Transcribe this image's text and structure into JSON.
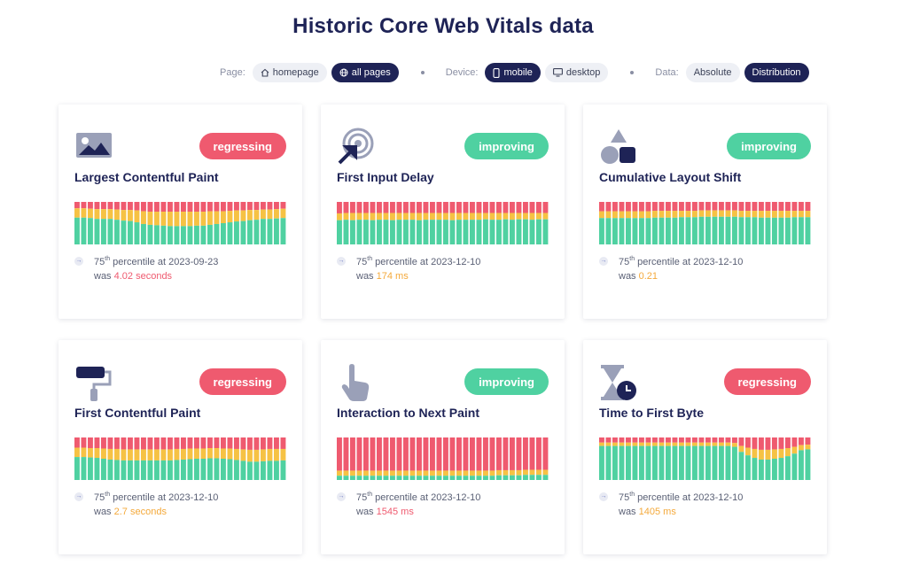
{
  "title": "Historic Core Web Vitals data",
  "filters": {
    "page_label": "Page:",
    "page_options": [
      "homepage",
      "all pages"
    ],
    "page_selected": "all pages",
    "device_label": "Device:",
    "device_options": [
      "mobile",
      "desktop"
    ],
    "device_selected": "mobile",
    "data_label": "Data:",
    "data_options": [
      "Absolute",
      "Distribution"
    ],
    "data_selected": "Distribution"
  },
  "colors": {
    "good": "#4fd1a1",
    "needs_improvement": "#f6c244",
    "poor": "#ef5a6f",
    "navy": "#1e2356"
  },
  "cards": [
    {
      "icon": "image-icon",
      "title": "Largest Contentful Paint",
      "status": "regressing",
      "percentile_sup": "th",
      "percentile_prefix": "75",
      "percentile_text": " percentile at 2023-09-23",
      "was_text": "was ",
      "value": "4.02 seconds",
      "value_color": "red",
      "chart_data": {
        "type": "bar",
        "stacked": true,
        "normalized": true,
        "bar_count": 32,
        "good": [
          0.63,
          0.63,
          0.62,
          0.6,
          0.6,
          0.6,
          0.58,
          0.56,
          0.55,
          0.52,
          0.48,
          0.46,
          0.45,
          0.44,
          0.43,
          0.43,
          0.43,
          0.43,
          0.44,
          0.44,
          0.46,
          0.48,
          0.5,
          0.52,
          0.54,
          0.55,
          0.57,
          0.58,
          0.6,
          0.6,
          0.61,
          0.62
        ],
        "needs_improvement": [
          0.22,
          0.22,
          0.22,
          0.23,
          0.23,
          0.23,
          0.24,
          0.25,
          0.26,
          0.28,
          0.3,
          0.31,
          0.32,
          0.33,
          0.34,
          0.34,
          0.34,
          0.34,
          0.33,
          0.33,
          0.32,
          0.3,
          0.28,
          0.27,
          0.26,
          0.25,
          0.24,
          0.23,
          0.22,
          0.22,
          0.22,
          0.22
        ]
      }
    },
    {
      "icon": "target-click-icon",
      "title": "First Input Delay",
      "status": "improving",
      "percentile_sup": "th",
      "percentile_prefix": "75",
      "percentile_text": " percentile at 2023-12-10",
      "was_text": "was ",
      "value": "174 ms",
      "value_color": "orange",
      "chart_data": {
        "type": "bar",
        "stacked": true,
        "normalized": true,
        "bar_count": 32,
        "good": [
          0.57,
          0.58,
          0.57,
          0.58,
          0.58,
          0.57,
          0.58,
          0.58,
          0.57,
          0.58,
          0.58,
          0.58,
          0.57,
          0.58,
          0.58,
          0.58,
          0.58,
          0.57,
          0.58,
          0.58,
          0.58,
          0.58,
          0.59,
          0.58,
          0.58,
          0.59,
          0.58,
          0.59,
          0.59,
          0.58,
          0.59,
          0.59
        ],
        "needs_improvement": [
          0.16,
          0.16,
          0.17,
          0.16,
          0.16,
          0.17,
          0.16,
          0.16,
          0.17,
          0.16,
          0.16,
          0.16,
          0.17,
          0.16,
          0.16,
          0.16,
          0.16,
          0.17,
          0.16,
          0.16,
          0.16,
          0.16,
          0.15,
          0.16,
          0.16,
          0.15,
          0.16,
          0.15,
          0.15,
          0.16,
          0.15,
          0.15
        ]
      }
    },
    {
      "icon": "shapes-icon",
      "title": "Cumulative Layout Shift",
      "status": "improving",
      "percentile_sup": "th",
      "percentile_prefix": "75",
      "percentile_text": " percentile at 2023-12-10",
      "was_text": "was ",
      "value": "0.21",
      "value_color": "orange",
      "chart_data": {
        "type": "bar",
        "stacked": true,
        "normalized": true,
        "bar_count": 32,
        "good": [
          0.62,
          0.62,
          0.62,
          0.62,
          0.62,
          0.62,
          0.62,
          0.62,
          0.63,
          0.63,
          0.63,
          0.63,
          0.64,
          0.64,
          0.64,
          0.65,
          0.65,
          0.65,
          0.65,
          0.65,
          0.65,
          0.64,
          0.64,
          0.64,
          0.63,
          0.63,
          0.63,
          0.63,
          0.63,
          0.64,
          0.64,
          0.64
        ],
        "needs_improvement": [
          0.16,
          0.16,
          0.16,
          0.16,
          0.16,
          0.16,
          0.16,
          0.16,
          0.16,
          0.16,
          0.16,
          0.16,
          0.15,
          0.15,
          0.15,
          0.15,
          0.15,
          0.15,
          0.15,
          0.15,
          0.15,
          0.15,
          0.15,
          0.15,
          0.16,
          0.16,
          0.16,
          0.16,
          0.16,
          0.15,
          0.15,
          0.15
        ]
      }
    },
    {
      "icon": "paint-roller-icon",
      "title": "First Contentful Paint",
      "status": "regressing",
      "percentile_sup": "th",
      "percentile_prefix": "75",
      "percentile_text": " percentile at 2023-12-10",
      "was_text": "was ",
      "value": "2.7 seconds",
      "value_color": "orange",
      "chart_data": {
        "type": "bar",
        "stacked": true,
        "normalized": true,
        "bar_count": 32,
        "good": [
          0.54,
          0.54,
          0.53,
          0.52,
          0.5,
          0.48,
          0.47,
          0.46,
          0.46,
          0.46,
          0.46,
          0.46,
          0.46,
          0.46,
          0.46,
          0.47,
          0.48,
          0.49,
          0.5,
          0.5,
          0.51,
          0.51,
          0.5,
          0.49,
          0.47,
          0.45,
          0.43,
          0.43,
          0.44,
          0.45,
          0.45,
          0.46
        ],
        "needs_improvement": [
          0.22,
          0.22,
          0.22,
          0.23,
          0.24,
          0.25,
          0.26,
          0.26,
          0.26,
          0.26,
          0.26,
          0.26,
          0.26,
          0.26,
          0.26,
          0.26,
          0.25,
          0.25,
          0.24,
          0.24,
          0.24,
          0.24,
          0.24,
          0.25,
          0.26,
          0.27,
          0.28,
          0.28,
          0.28,
          0.28,
          0.28,
          0.27
        ]
      }
    },
    {
      "icon": "pointer-hand-icon",
      "title": "Interaction to Next Paint",
      "status": "improving",
      "percentile_sup": "th",
      "percentile_prefix": "75",
      "percentile_text": " percentile at 2023-12-10",
      "was_text": "was ",
      "value": "1545 ms",
      "value_color": "red",
      "chart_data": {
        "type": "bar",
        "stacked": true,
        "normalized": true,
        "bar_count": 32,
        "good": [
          0.1,
          0.1,
          0.1,
          0.1,
          0.1,
          0.1,
          0.1,
          0.1,
          0.1,
          0.1,
          0.1,
          0.1,
          0.1,
          0.1,
          0.1,
          0.1,
          0.1,
          0.1,
          0.1,
          0.1,
          0.1,
          0.1,
          0.1,
          0.1,
          0.11,
          0.11,
          0.11,
          0.11,
          0.12,
          0.12,
          0.12,
          0.12
        ],
        "needs_improvement": [
          0.12,
          0.12,
          0.12,
          0.12,
          0.12,
          0.12,
          0.12,
          0.12,
          0.12,
          0.12,
          0.12,
          0.12,
          0.12,
          0.12,
          0.12,
          0.12,
          0.12,
          0.12,
          0.12,
          0.12,
          0.12,
          0.12,
          0.12,
          0.12,
          0.12,
          0.12,
          0.12,
          0.12,
          0.12,
          0.12,
          0.12,
          0.12
        ]
      }
    },
    {
      "icon": "hourglass-clock-icon",
      "title": "Time to First Byte",
      "status": "regressing",
      "percentile_sup": "th",
      "percentile_prefix": "75",
      "percentile_text": " percentile at 2023-12-10",
      "was_text": "was ",
      "value": "1405 ms",
      "value_color": "orange",
      "chart_data": {
        "type": "bar",
        "stacked": true,
        "normalized": true,
        "bar_count": 32,
        "good": [
          0.8,
          0.8,
          0.8,
          0.8,
          0.8,
          0.8,
          0.8,
          0.8,
          0.8,
          0.8,
          0.8,
          0.8,
          0.8,
          0.8,
          0.8,
          0.8,
          0.8,
          0.8,
          0.8,
          0.8,
          0.78,
          0.66,
          0.58,
          0.52,
          0.48,
          0.48,
          0.5,
          0.52,
          0.56,
          0.62,
          0.7,
          0.72
        ],
        "needs_improvement": [
          0.08,
          0.08,
          0.08,
          0.08,
          0.08,
          0.08,
          0.08,
          0.08,
          0.08,
          0.08,
          0.08,
          0.08,
          0.08,
          0.08,
          0.08,
          0.08,
          0.08,
          0.08,
          0.08,
          0.08,
          0.09,
          0.14,
          0.18,
          0.21,
          0.23,
          0.23,
          0.22,
          0.21,
          0.19,
          0.16,
          0.12,
          0.11
        ]
      }
    }
  ]
}
